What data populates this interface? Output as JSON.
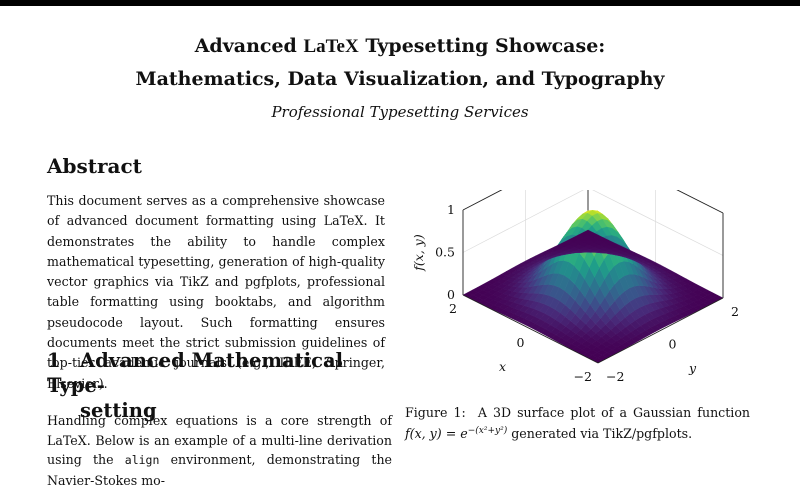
{
  "document": {
    "title_line1_pre": "Advanced ",
    "latex": "LaTeX",
    "title_line1_post": " Typesetting Showcase:",
    "title_line2": "Mathematics, Data Visualization, and Typography",
    "author": "Professional Typesetting Services"
  },
  "abstract": {
    "heading": "Abstract",
    "text_pre": "This document serves as a comprehensive showcase of advanced document formatting using ",
    "text_post": ". It demonstrates the ability to handle complex mathematical typesetting, generation of high-quality vector graphics via TikZ and pgfplots, professional table formatting using booktabs, and algorithm pseudocode layout.  Such formatting ensures documents meet the strict submission guidelines of top-tier academic journals (e.g., IEEE, Springer, Elsevier)."
  },
  "section1": {
    "number": "1",
    "title_line1": "Advanced Mathematical Type-",
    "title_line2": "setting",
    "text_pre": "Handling complex equations is a core strength of ",
    "text_mid": ". Below is an example of a multi-line derivation using the ",
    "code": "align",
    "text_post": " environment, demonstrating the Navier-Stokes mo-"
  },
  "figure": {
    "caption_label": "Figure 1:",
    "caption_text_pre": "A 3D surface plot of a Gaussian function ",
    "caption_math": "f(x, y) = e",
    "caption_exp": "−(x²+y²)",
    "caption_text_post": " generated via TikZ/pgfplots."
  },
  "chart_data": {
    "type": "surface",
    "function": "f(x,y) = exp(-(x^2+y^2))",
    "zlabel": "f(x, y)",
    "xlabel": "x",
    "ylabel": "y",
    "xlim": [
      -2,
      2
    ],
    "ylim": [
      -2,
      2
    ],
    "zlim": [
      0,
      1
    ],
    "z_ticks": [
      "0",
      "0.5",
      "1"
    ],
    "x_ticks": [
      "−2",
      "0",
      "2"
    ],
    "y_ticks": [
      "−2",
      "0",
      "2"
    ],
    "colormap": "viridis",
    "grid": true
  }
}
